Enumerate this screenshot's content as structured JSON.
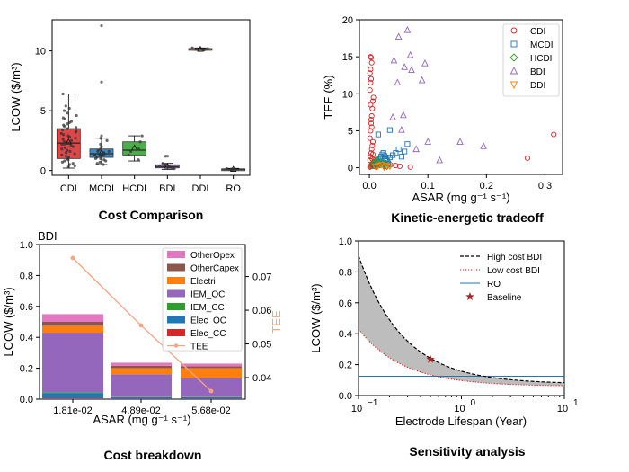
{
  "chart_data": [
    {
      "type": "box",
      "title": "Cost Comparison",
      "ylabel": "LCOW ($/m³)",
      "xlabel": "",
      "ylim": [
        -0.4,
        12.6
      ],
      "yticks": [
        0,
        5,
        10
      ],
      "categories": [
        "CDI",
        "MCDI",
        "HCDI",
        "BDI",
        "DDI",
        "RO"
      ],
      "colors": [
        "#d62728",
        "#1f77b4",
        "#2ca02c",
        "#9467bd",
        "#ff7f0e",
        "#7f7f7f"
      ],
      "boxes": [
        {
          "name": "CDI",
          "whislo": 0.2,
          "q1": 1.0,
          "median": 2.3,
          "q3": 3.5,
          "whishi": 6.4,
          "mean": 2.4
        },
        {
          "name": "MCDI",
          "whislo": 0.5,
          "q1": 1.1,
          "median": 1.4,
          "q3": 1.8,
          "whishi": 2.7,
          "mean": 1.5
        },
        {
          "name": "HCDI",
          "whislo": 0.8,
          "q1": 1.3,
          "median": 1.7,
          "q3": 2.4,
          "whishi": 2.9,
          "mean": 1.9
        },
        {
          "name": "BDI",
          "whislo": 0.1,
          "q1": 0.22,
          "median": 0.33,
          "q3": 0.48,
          "whishi": 0.6,
          "mean": 0.38
        },
        {
          "name": "DDI",
          "whislo": 10.05,
          "q1": 10.1,
          "median": 10.15,
          "q3": 10.2,
          "whishi": 10.25,
          "mean": 10.15
        },
        {
          "name": "RO",
          "whislo": 0.08,
          "q1": 0.1,
          "median": 0.12,
          "q3": 0.14,
          "whishi": 0.18,
          "mean": 0.12
        }
      ],
      "outliers": [
        {
          "category": "MCDI",
          "values": [
            12.1,
            7.4,
            2.9
          ]
        },
        {
          "category": "BDI",
          "values": [
            1.2
          ]
        }
      ],
      "points": [
        {
          "category": "CDI",
          "values": [
            0.3,
            0.5,
            0.7,
            0.8,
            1.0,
            1.1,
            1.3,
            1.4,
            1.6,
            1.7,
            1.9,
            2.0,
            2.1,
            2.2,
            2.3,
            2.4,
            2.5,
            2.6,
            2.8,
            2.9,
            3.0,
            3.1,
            3.2,
            3.3,
            3.4,
            3.5,
            3.6,
            3.8,
            3.9,
            4.0,
            4.1,
            4.3,
            4.4,
            4.6,
            4.8,
            5.0,
            5.2,
            5.4,
            6.4,
            0.6,
            1.2,
            1.5,
            1.8,
            2.7,
            3.7,
            0.4,
            0.9,
            2.2
          ]
        },
        {
          "category": "MCDI",
          "values": [
            0.5,
            0.7,
            0.8,
            0.9,
            1.0,
            1.1,
            1.2,
            1.3,
            1.3,
            1.4,
            1.4,
            1.5,
            1.6,
            1.7,
            1.8,
            2.0,
            2.2,
            2.5,
            2.7,
            1.0,
            1.6,
            0.6
          ]
        },
        {
          "category": "HCDI",
          "values": [
            0.9,
            1.3,
            1.6,
            1.8,
            2.4,
            2.9
          ]
        },
        {
          "category": "BDI",
          "values": [
            0.15,
            0.2,
            0.25,
            0.3,
            0.35,
            0.4,
            0.45,
            0.5,
            0.6,
            1.2
          ]
        },
        {
          "category": "DDI",
          "values": [
            10.05,
            10.1,
            10.15,
            10.2,
            10.25
          ]
        },
        {
          "category": "RO",
          "values": [
            0.1,
            0.12,
            0.14,
            0.16
          ]
        }
      ]
    },
    {
      "type": "scatter",
      "title": "Kinetic-energetic tradeoff",
      "xlabel": "ASAR (mg g⁻¹ s⁻¹)",
      "ylabel": "TEE (%)",
      "xlim": [
        -0.017,
        0.33
      ],
      "ylim": [
        -0.9,
        20
      ],
      "xticks": [
        "0.0",
        "0.1",
        "0.2",
        "0.3"
      ],
      "yticks": [
        "0",
        "5",
        "10",
        "15",
        "20"
      ],
      "legend_position": "top-right",
      "series": [
        {
          "name": "CDI",
          "color": "#d62728",
          "marker": "circle",
          "x": [
            0.001,
            0.002,
            0.003,
            0.004,
            0.005,
            0.006,
            0.007,
            0.008,
            0.009,
            0.01,
            0.011,
            0.012,
            0.013,
            0.015,
            0.018,
            0.022,
            0.025,
            0.028,
            0.032,
            0.036,
            0.045,
            0.052,
            0.07,
            0.27,
            0.315,
            0.001,
            0.002,
            0.003,
            0.004,
            0.005,
            0.006,
            0.001,
            0.002,
            0.003,
            0.004,
            0.005,
            0.006,
            0.007,
            0.001,
            0.002,
            0.003,
            0.001,
            0.002,
            0.004,
            0.003,
            0.002,
            0.005,
            0.006,
            0.008,
            0.01,
            0.012,
            0.004,
            0.003,
            0.002
          ],
          "y": [
            0.1,
            0.2,
            0.3,
            0.5,
            0.4,
            0.6,
            0.3,
            0.2,
            0.5,
            0.4,
            0.2,
            0.1,
            0.3,
            0.6,
            0.5,
            0.4,
            0.3,
            0.2,
            0.5,
            0.4,
            0.3,
            0.2,
            0.1,
            1.3,
            4.5,
            1.0,
            1.5,
            2.0,
            2.5,
            3.0,
            3.5,
            4.0,
            5.0,
            6.0,
            7.0,
            8.0,
            9.0,
            9.5,
            10.5,
            11.5,
            12.0,
            12.8,
            13.3,
            14.2,
            14.9,
            15.0,
            1.2,
            1.8,
            0.8,
            1.1,
            0.9,
            5.5,
            6.5,
            8.5
          ]
        },
        {
          "name": "MCDI",
          "color": "#1f77b4",
          "marker": "square",
          "x": [
            0.01,
            0.012,
            0.014,
            0.016,
            0.018,
            0.02,
            0.022,
            0.024,
            0.026,
            0.028,
            0.03,
            0.032,
            0.035,
            0.04,
            0.045,
            0.05,
            0.055,
            0.06,
            0.065,
            0.015,
            0.02,
            0.025,
            0.03,
            0.035
          ],
          "y": [
            0.3,
            0.5,
            0.8,
            1.0,
            1.2,
            1.5,
            1.8,
            2.0,
            1.6,
            1.2,
            0.9,
            0.6,
            1.4,
            1.7,
            2.0,
            2.5,
            1.5,
            2.2,
            3.2,
            4.5,
            0.4,
            0.7,
            1.1,
            5.1
          ]
        },
        {
          "name": "HCDI",
          "color": "#2ca02c",
          "marker": "diamond",
          "x": [
            0.005,
            0.008,
            0.01,
            0.012,
            0.015,
            0.018,
            0.02,
            0.025,
            0.028,
            0.03
          ],
          "y": [
            0.3,
            0.6,
            0.8,
            1.0,
            0.5,
            0.4,
            0.7,
            0.3,
            0.5,
            0.2
          ]
        },
        {
          "name": "BDI",
          "color": "#9467bd",
          "marker": "triangle",
          "x": [
            0.04,
            0.042,
            0.048,
            0.05,
            0.055,
            0.058,
            0.06,
            0.065,
            0.07,
            0.072,
            0.08,
            0.09,
            0.095,
            0.1,
            0.12,
            0.155,
            0.195
          ],
          "y": [
            6.8,
            14.5,
            11.5,
            17.7,
            5.1,
            7.1,
            13.6,
            18.6,
            15.2,
            13.2,
            2.5,
            11.8,
            14.1,
            3.5,
            1.0,
            3.5,
            2.9
          ]
        },
        {
          "name": "DDI",
          "color": "#ff7f0e",
          "marker": "triangle-down",
          "x": [
            0.01,
            0.015,
            0.02,
            0.025,
            0.03,
            0.035
          ],
          "y": [
            0.2,
            0.3,
            0.4,
            0.1,
            0.3,
            0.2
          ]
        }
      ]
    },
    {
      "type": "stacked-bar",
      "title": "Cost breakdown",
      "subtitle": "BDI",
      "xlabel": "ASAR (mg g⁻¹ s⁻¹)",
      "ylabel": "LCOW ($/m³)",
      "y2label": "TEE",
      "ylim": [
        0,
        1.0
      ],
      "yticks": [
        "0.0",
        "0.2",
        "0.4",
        "0.6",
        "0.8",
        "1.0"
      ],
      "y2lim": [
        0.0336,
        0.0795
      ],
      "y2ticks": [
        "0.04",
        "0.05",
        "0.06",
        "0.07"
      ],
      "categories": [
        "1.81e-02",
        "4.89e-02",
        "5.68e-02"
      ],
      "series": [
        {
          "name": "Elec_CC",
          "color": "#d62728",
          "values": [
            0.005,
            0.003,
            0.003
          ]
        },
        {
          "name": "Elec_OC",
          "color": "#1f77b4",
          "values": [
            0.035,
            0.01,
            0.01
          ]
        },
        {
          "name": "IEM_CC",
          "color": "#2ca02c",
          "values": [
            0.005,
            0.003,
            0.003
          ]
        },
        {
          "name": "IEM_OC",
          "color": "#9467bd",
          "values": [
            0.385,
            0.145,
            0.12
          ]
        },
        {
          "name": "Electri",
          "color": "#ff7f0e",
          "values": [
            0.045,
            0.04,
            0.065
          ]
        },
        {
          "name": "OtherCapex",
          "color": "#8c564b",
          "values": [
            0.025,
            0.015,
            0.012
          ]
        },
        {
          "name": "OtherOpex",
          "color": "#e377c2",
          "values": [
            0.05,
            0.02,
            0.017
          ]
        }
      ],
      "line": {
        "name": "TEE",
        "color": "#f4a582",
        "values": [
          0.0755,
          0.0555,
          0.036
        ]
      },
      "legend_position": "top-right"
    },
    {
      "type": "line",
      "title": "Sensitivity analysis",
      "xlabel": "Electrode Lifespan (Year)",
      "ylabel": "LCOW ($/m³)",
      "xscale": "log",
      "xlim": [
        0.1,
        10
      ],
      "ylim": [
        0.0,
        1.0
      ],
      "yticks": [
        "0.0",
        "0.2",
        "0.4",
        "0.6",
        "0.8",
        "1.0"
      ],
      "xticks": [
        "10",
        "10",
        "10"
      ],
      "xtick_exponents": [
        "−1",
        "0",
        "1"
      ],
      "legend_position": "top-right",
      "series": [
        {
          "name": "High cost BDI",
          "color": "#000000",
          "style": "dashed",
          "floor": 0.075,
          "coef": 0.083
        },
        {
          "name": "Low cost BDI",
          "color": "#e31a1c",
          "style": "dotted",
          "floor": 0.06,
          "coef": 0.037
        },
        {
          "name": "RO",
          "color": "#1f77b4",
          "style": "solid",
          "value": 0.125
        }
      ],
      "baseline": {
        "name": "Baseline",
        "color": "#a52a2a",
        "x": 0.5,
        "y": 0.235
      },
      "fill": {
        "color": "#bdbdbd"
      }
    }
  ]
}
